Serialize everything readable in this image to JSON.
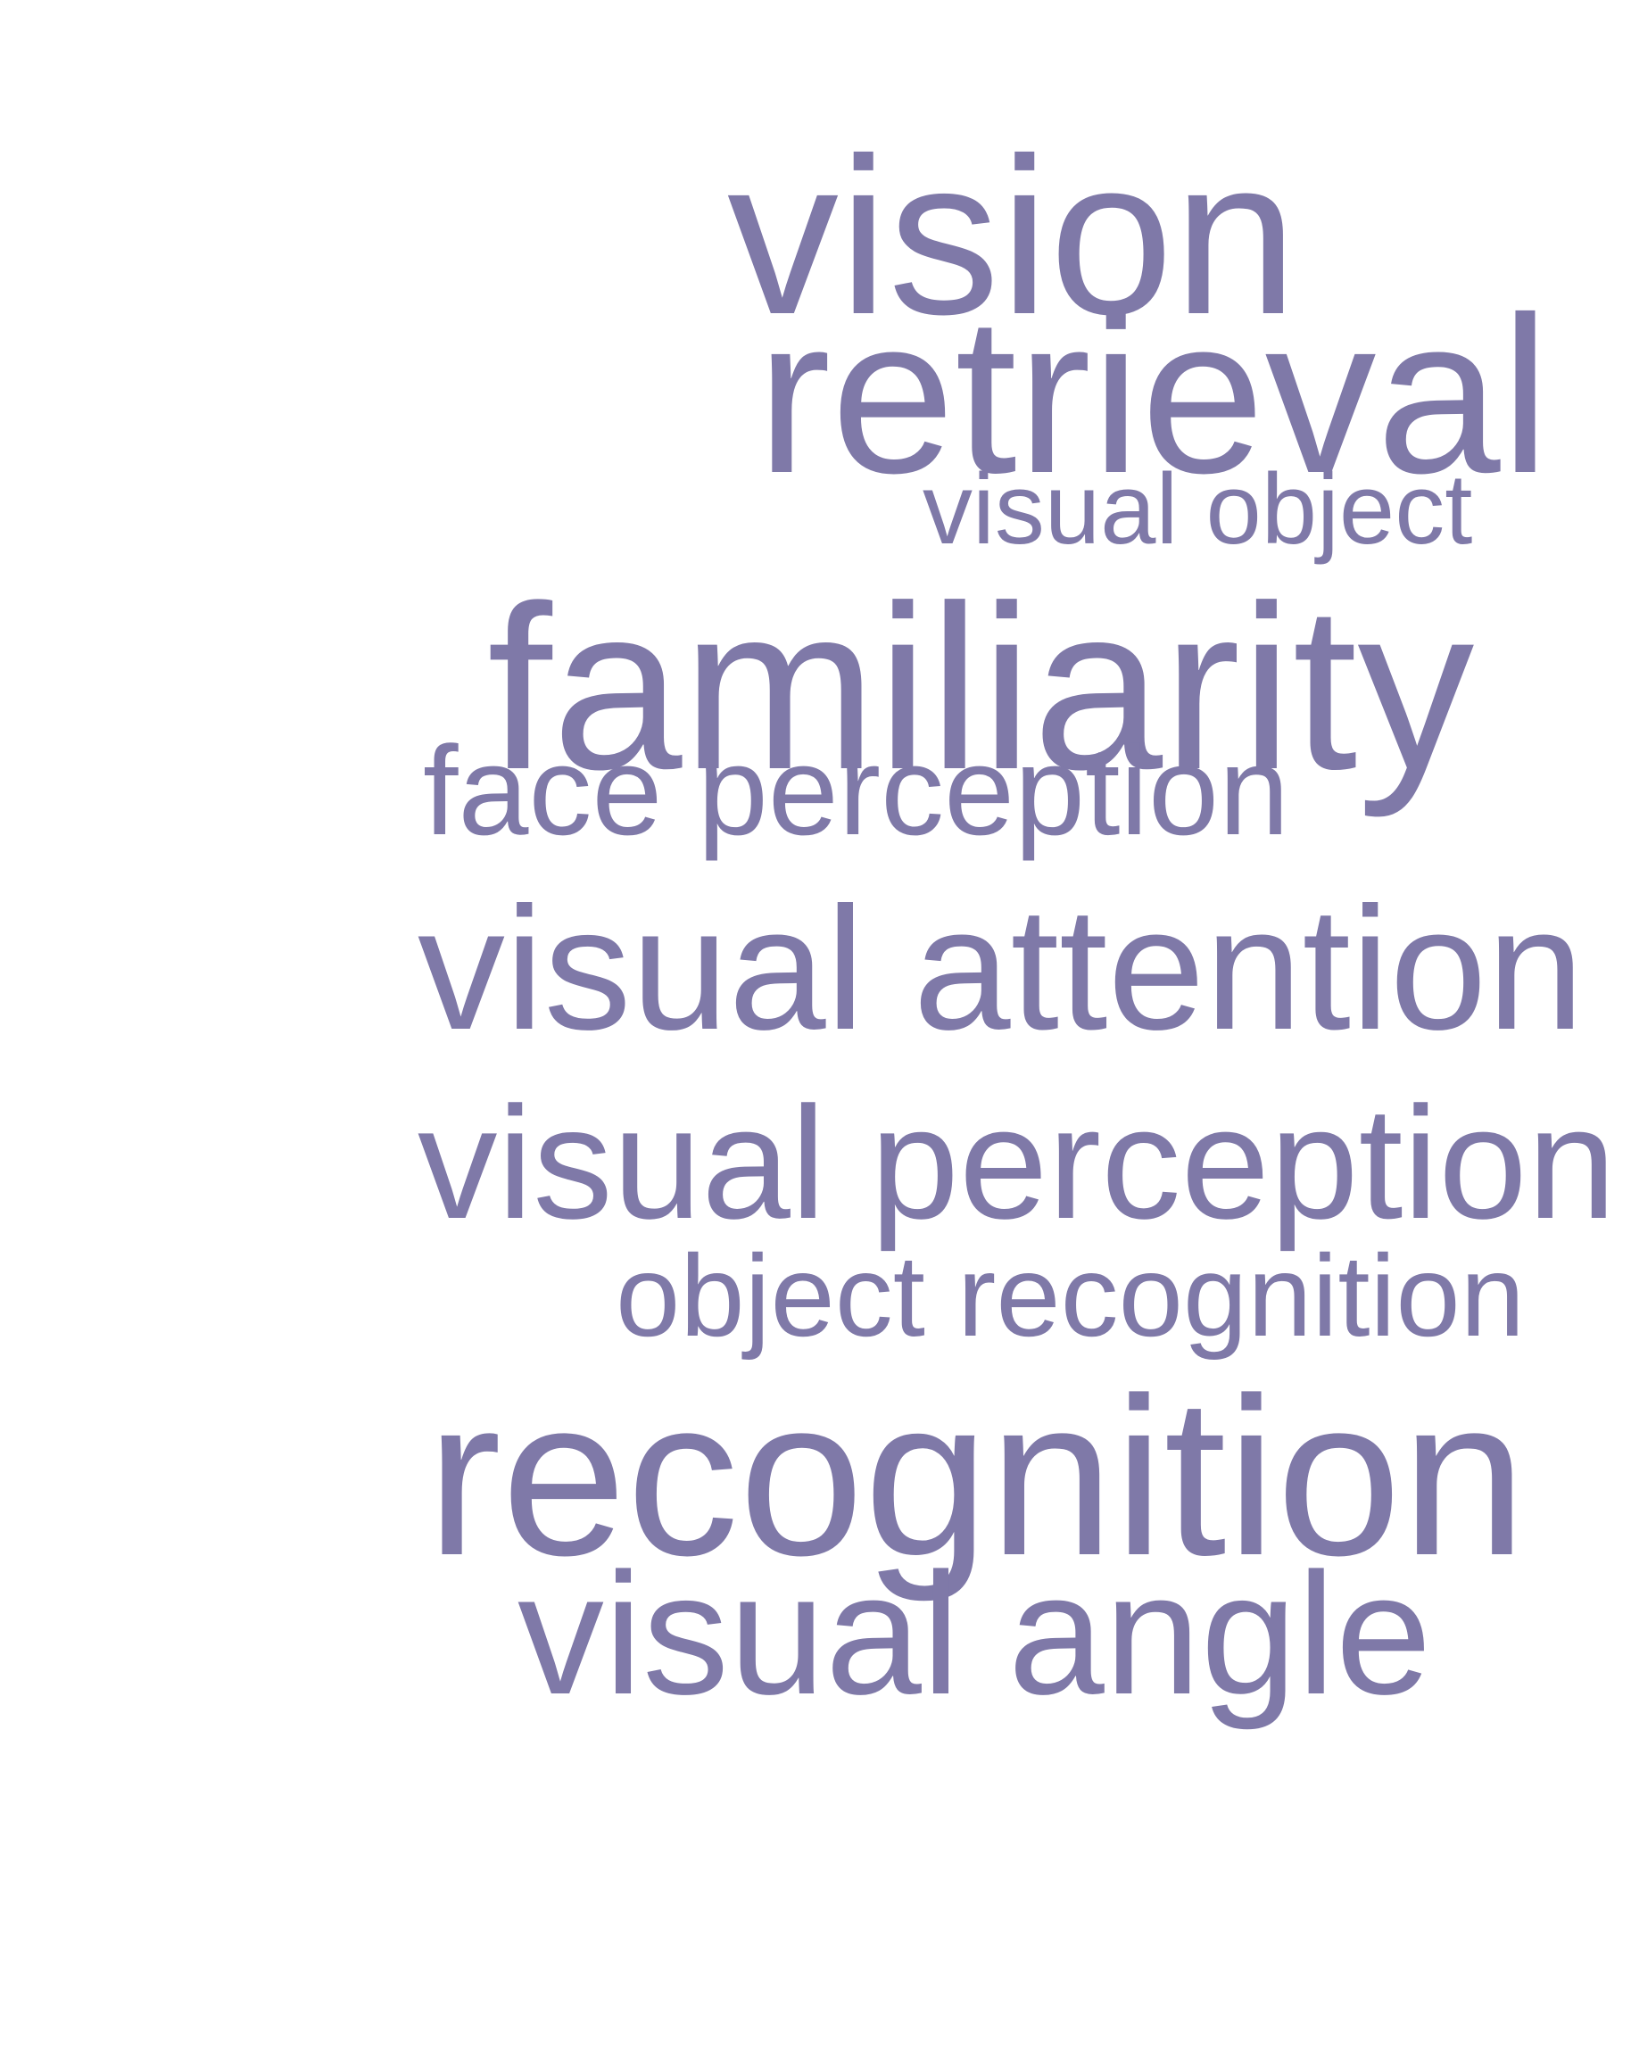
{
  "colors": {
    "background": "#ffffff",
    "word": "#7f79a8"
  },
  "words": {
    "vision": "vision",
    "retrieval": "retrieval",
    "visual_object": "visual object",
    "familiarity": "familiarity",
    "face_perception": "face perception",
    "visual_attention": "visual attention",
    "visual_perception": "visual perception",
    "object_recognition": "object recognition",
    "recognition": "recognition",
    "visual_angle": "visual angle"
  }
}
